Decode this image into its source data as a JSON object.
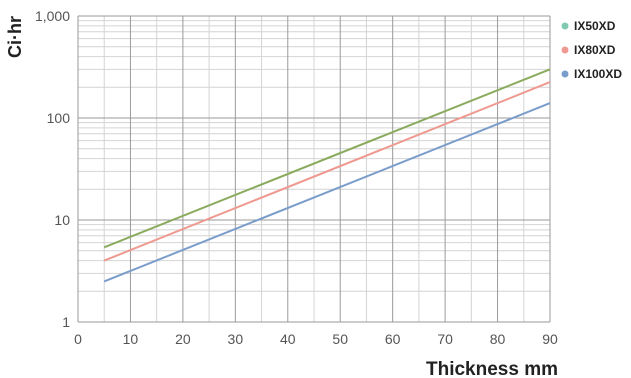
{
  "chart_data": {
    "type": "line",
    "xlabel": "Thickness mm",
    "ylabel": "Ci·hr",
    "y_scale": "log",
    "xlim": [
      0,
      90
    ],
    "ylim": [
      1,
      1000
    ],
    "x_ticks": [
      0,
      10,
      20,
      30,
      40,
      50,
      60,
      70,
      80,
      90
    ],
    "x_tick_labels": [
      "0",
      "10",
      "20",
      "30",
      "40",
      "50",
      "60",
      "70",
      "80",
      "90"
    ],
    "y_ticks": [
      1,
      10,
      100,
      1000
    ],
    "y_tick_labels": [
      "1",
      "10",
      "100",
      "1,000"
    ],
    "grid": true,
    "legend_position": "right",
    "series": [
      {
        "name": "IX50XD",
        "color": "#8aab5e",
        "legend_color": "#7fcab0",
        "x": [
          5,
          90
        ],
        "y": [
          5.4,
          300
        ]
      },
      {
        "name": "IX80XD",
        "color": "#ee9a90",
        "legend_color": "#ee9a90",
        "x": [
          5,
          90
        ],
        "y": [
          4.0,
          225
        ]
      },
      {
        "name": "IX100XD",
        "color": "#7b9dcc",
        "legend_color": "#7b9dcc",
        "x": [
          5,
          90
        ],
        "y": [
          2.5,
          140
        ]
      }
    ]
  }
}
